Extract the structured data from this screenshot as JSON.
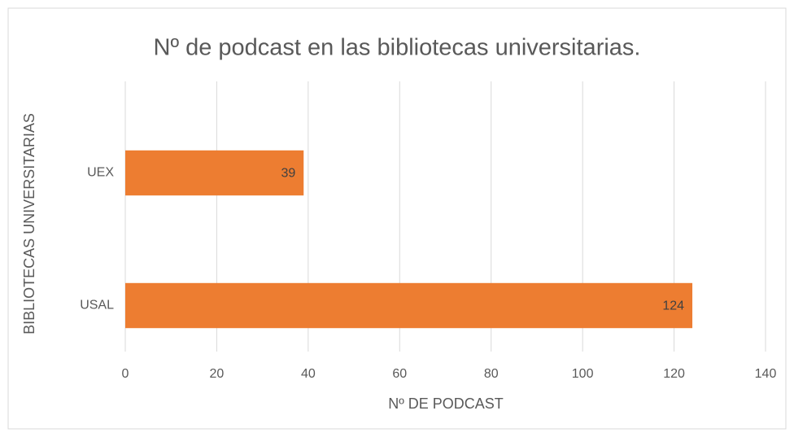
{
  "chart_data": {
    "type": "bar",
    "orientation": "horizontal",
    "title": "Nº de podcast en las bibliotecas universitarias.",
    "x_label": "Nº DE PODCAST",
    "y_label": "BIBLIOTECAS UNIVERSITARIAS",
    "categories": [
      "UEX",
      "USAL"
    ],
    "values": [
      39,
      124
    ],
    "color": "#ed7d31",
    "xlim": [
      0,
      140
    ],
    "xticks": [
      0,
      20,
      40,
      60,
      80,
      100,
      120,
      140
    ],
    "grid": true,
    "data_labels": true
  }
}
